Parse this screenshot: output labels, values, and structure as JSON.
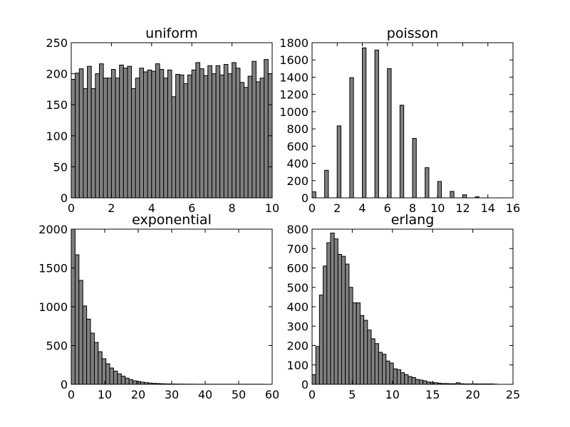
{
  "colors": {
    "bar_fill": "#808080",
    "bar_edge": "#000000",
    "background": "#ffffff"
  },
  "chart_data": [
    {
      "type": "bar",
      "title": "uniform",
      "xlabel": "",
      "ylabel": "",
      "xlim": [
        0,
        10
      ],
      "ylim": [
        0,
        250
      ],
      "xticks": [
        0,
        2,
        4,
        6,
        8,
        10
      ],
      "yticks": [
        0,
        50,
        100,
        150,
        200,
        250
      ],
      "bin_start": 0,
      "bin_width": 0.2,
      "values": [
        191,
        201,
        208,
        176,
        212,
        176,
        200,
        216,
        193,
        193,
        207,
        193,
        214,
        209,
        212,
        176,
        193,
        209,
        203,
        206,
        204,
        216,
        207,
        193,
        206,
        163,
        199,
        198,
        184,
        198,
        206,
        218,
        208,
        197,
        213,
        200,
        213,
        198,
        215,
        200,
        218,
        209,
        186,
        178,
        196,
        220,
        187,
        193,
        223,
        200
      ],
      "grid": false
    },
    {
      "type": "bar",
      "title": "poisson",
      "xlabel": "",
      "ylabel": "",
      "xlim": [
        0,
        16
      ],
      "ylim": [
        0,
        1800
      ],
      "xticks": [
        0,
        2,
        4,
        6,
        8,
        10,
        12,
        14,
        16
      ],
      "yticks": [
        0,
        200,
        400,
        600,
        800,
        1000,
        1200,
        1400,
        1600,
        1800
      ],
      "bar_width": 0.3,
      "points": [
        {
          "x": 0,
          "y": 70
        },
        {
          "x": 1,
          "y": 320
        },
        {
          "x": 2,
          "y": 835
        },
        {
          "x": 3,
          "y": 1395
        },
        {
          "x": 4,
          "y": 1740
        },
        {
          "x": 5,
          "y": 1715
        },
        {
          "x": 6,
          "y": 1500
        },
        {
          "x": 7,
          "y": 1075
        },
        {
          "x": 8,
          "y": 690
        },
        {
          "x": 9,
          "y": 350
        },
        {
          "x": 10,
          "y": 190
        },
        {
          "x": 11,
          "y": 75
        },
        {
          "x": 12,
          "y": 35
        },
        {
          "x": 13,
          "y": 12
        }
      ],
      "grid": false
    },
    {
      "type": "bar",
      "title": "exponential",
      "xlabel": "",
      "ylabel": "",
      "xlim": [
        0,
        60
      ],
      "ylim": [
        0,
        2000
      ],
      "xticks": [
        0,
        10,
        20,
        30,
        40,
        50,
        60
      ],
      "yticks": [
        0,
        500,
        1000,
        1500,
        2000
      ],
      "bin_start": 0,
      "bin_width": 1.15,
      "values": [
        2000,
        1670,
        1340,
        1010,
        840,
        660,
        540,
        420,
        330,
        265,
        210,
        170,
        135,
        105,
        80,
        60,
        45,
        36,
        28,
        22,
        16,
        12,
        10,
        8,
        6,
        5,
        4,
        3,
        3,
        2,
        2,
        2,
        1,
        1,
        1,
        1,
        1,
        1,
        1,
        1,
        1,
        1,
        1,
        1,
        1,
        1,
        1,
        1,
        1,
        1
      ],
      "grid": false
    },
    {
      "type": "bar",
      "title": "erlang",
      "xlabel": "",
      "ylabel": "",
      "xlim": [
        0,
        25
      ],
      "ylim": [
        0,
        800
      ],
      "xticks": [
        0,
        5,
        10,
        15,
        20,
        25
      ],
      "yticks": [
        0,
        100,
        200,
        300,
        400,
        500,
        600,
        700,
        800
      ],
      "bin_start": 0,
      "bin_width": 0.46,
      "values": [
        50,
        195,
        460,
        610,
        730,
        780,
        750,
        670,
        660,
        620,
        500,
        420,
        420,
        355,
        330,
        280,
        235,
        210,
        165,
        155,
        120,
        110,
        80,
        75,
        60,
        50,
        40,
        35,
        25,
        22,
        18,
        12,
        10,
        8,
        6,
        4,
        4,
        3,
        3,
        8,
        3,
        2,
        2,
        2,
        2,
        2,
        2,
        2,
        2,
        1
      ],
      "grid": false
    }
  ]
}
